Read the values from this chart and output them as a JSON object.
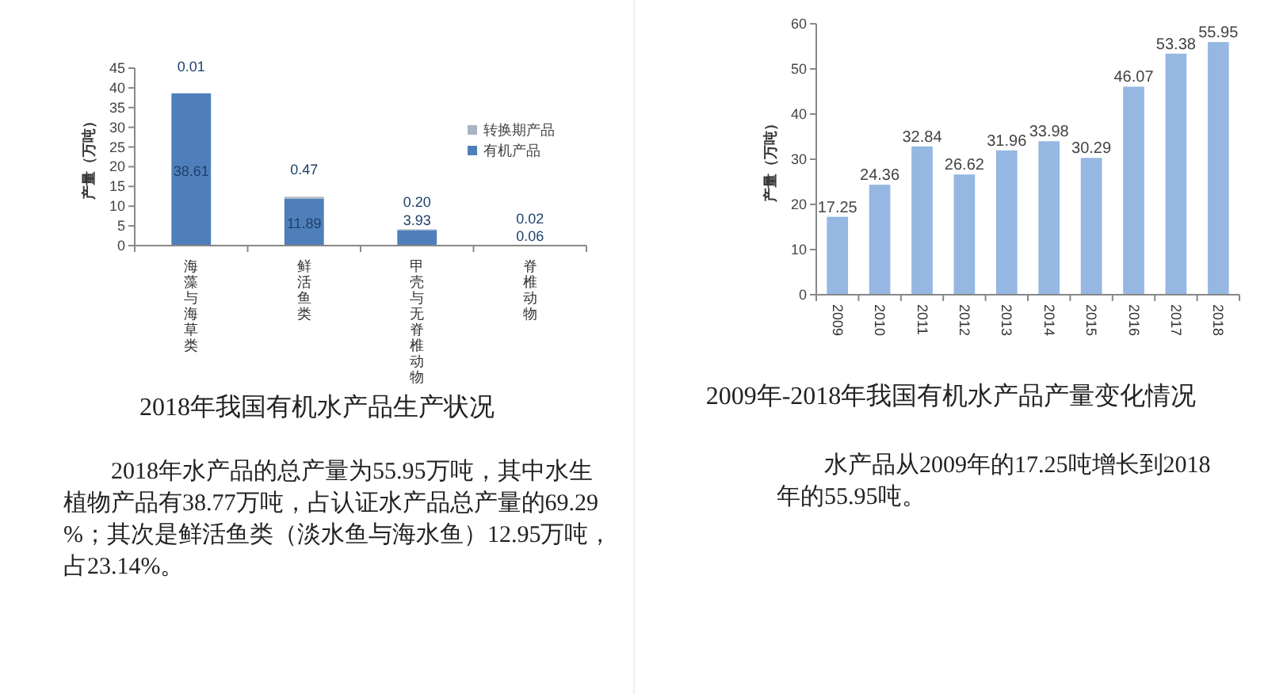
{
  "chart_data": [
    {
      "type": "bar",
      "stacked": true,
      "title": "2018年我国有机水产品生产状况",
      "ylabel": "产量（万吨）",
      "categories": [
        "海藻与海草类",
        "鲜活鱼类",
        "甲壳与无脊椎动物",
        "脊椎动物"
      ],
      "series": [
        {
          "name": "有机产品",
          "color": "#4f7fba",
          "values": [
            38.61,
            11.89,
            3.93,
            0.06
          ],
          "value_labels": [
            "38.61",
            "11.89",
            "3.93",
            "0.06"
          ]
        },
        {
          "name": "转换期产品",
          "color": "#a9b4c2",
          "values": [
            0.01,
            0.47,
            0.2,
            0.02
          ],
          "value_labels": [
            "0.01",
            "0.47",
            "0.20",
            "0.02"
          ]
        }
      ],
      "ylim": [
        0,
        45
      ],
      "yticks": [
        0,
        5,
        10,
        15,
        20,
        25,
        30,
        35,
        40,
        45
      ],
      "legend": "right",
      "grid": false,
      "annotations": [
        "2018年水产品的总产量为55.95万吨，其中水生植物产品有38.77万吨，占认证水产品总产量的69.29%；其次是鲜活鱼类（淡水鱼与海水鱼）12.95万吨，占23.14%。"
      ]
    },
    {
      "type": "bar",
      "title": "2009年-2018年我国有机水产品产量变化情况",
      "ylabel": "产量（万吨）",
      "categories": [
        "2009",
        "2010",
        "2011",
        "2012",
        "2013",
        "2014",
        "2015",
        "2016",
        "2017",
        "2018"
      ],
      "values": [
        17.25,
        24.36,
        32.84,
        26.62,
        31.96,
        33.98,
        30.29,
        46.07,
        53.38,
        55.95
      ],
      "color": "#95b7e2",
      "ylim": [
        0,
        60
      ],
      "yticks": [
        0,
        10,
        20,
        30,
        40,
        50,
        60
      ],
      "data_labels": true,
      "grid": false,
      "annotations": [
        "水产品从2009年的17.25吨增长到2018年的55.95吨。"
      ]
    }
  ]
}
